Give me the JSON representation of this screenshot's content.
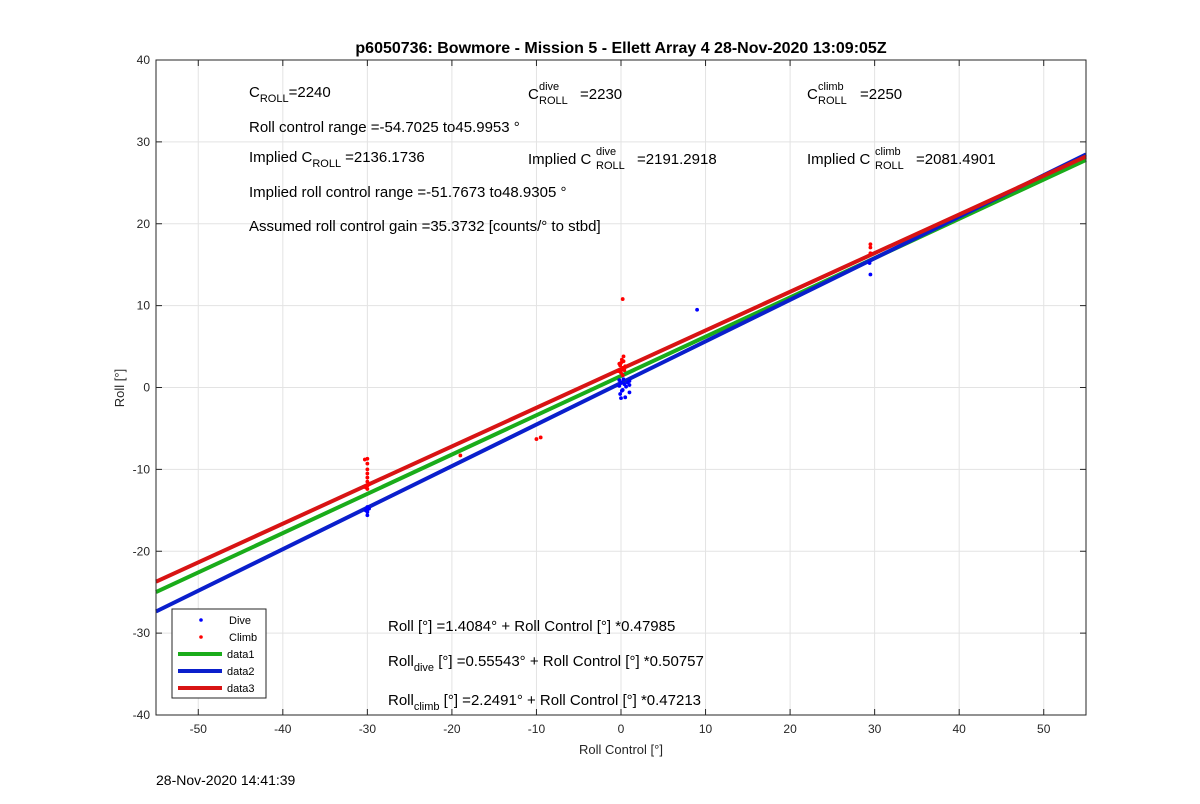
{
  "chart_data": {
    "type": "scatter",
    "title": "p6050736: Bowmore - Mission 5 - Ellett Array 4 28-Nov-2020 13:09:05Z",
    "xlabel": "Roll Control [°]",
    "ylabel": "Roll [°]",
    "xlim": [
      -55,
      55
    ],
    "ylim": [
      -40,
      40
    ],
    "xticks": [
      -50,
      -40,
      -30,
      -20,
      -10,
      0,
      10,
      20,
      30,
      40,
      50
    ],
    "yticks": [
      -40,
      -30,
      -20,
      -10,
      0,
      10,
      20,
      30,
      40
    ],
    "xtick_labels": [
      "-50",
      "-40",
      "-30",
      "-20",
      "-10",
      "0",
      "10",
      "20",
      "30",
      "40",
      "50"
    ],
    "ytick_labels": [
      "-40",
      "-30",
      "-20",
      "-10",
      "0",
      "10",
      "20",
      "30",
      "40"
    ],
    "grid": true,
    "legend_position": "bottom-left",
    "series": [
      {
        "name": "Dive",
        "kind": "scatter",
        "color": "#0000ff",
        "points": [
          [
            -30,
            -14.6
          ],
          [
            -30,
            -14.9
          ],
          [
            -30,
            -15.2
          ],
          [
            -30,
            -15.6
          ],
          [
            -30.2,
            -15.0
          ],
          [
            -29.8,
            -14.8
          ],
          [
            -0.2,
            0.2
          ],
          [
            0,
            0.6
          ],
          [
            0.2,
            -0.3
          ],
          [
            0.3,
            1.0
          ],
          [
            -0.1,
            -0.8
          ],
          [
            0.4,
            0.4
          ],
          [
            0,
            -1.3
          ],
          [
            0.5,
            -1.2
          ],
          [
            0.2,
            1.5
          ],
          [
            -0.2,
            0.9
          ],
          [
            0.6,
            0.1
          ],
          [
            1,
            0.3
          ],
          [
            1,
            0.8
          ],
          [
            1,
            -0.6
          ],
          [
            0.8,
            0.6
          ],
          [
            0.1,
            -0.4
          ],
          [
            9,
            9.5
          ],
          [
            29.5,
            13.8
          ],
          [
            29.4,
            15.2
          ]
        ]
      },
      {
        "name": "Climb",
        "kind": "scatter",
        "color": "#ff0000",
        "points": [
          [
            -30,
            -8.7
          ],
          [
            -30.3,
            -8.8
          ],
          [
            -30,
            -9.3
          ],
          [
            -30,
            -10.0
          ],
          [
            -30,
            -10.5
          ],
          [
            -30,
            -11.0
          ],
          [
            -30,
            -11.5
          ],
          [
            -30,
            -12.0
          ],
          [
            -30,
            -12.4
          ],
          [
            -29.8,
            -11.8
          ],
          [
            -30.2,
            -12.2
          ],
          [
            -19,
            -8.3
          ],
          [
            -10,
            -6.3
          ],
          [
            -9.5,
            -6.1
          ],
          [
            0.2,
            10.8
          ],
          [
            0.3,
            3.8
          ],
          [
            0.1,
            3.4
          ],
          [
            0,
            3.0
          ],
          [
            -0.1,
            2.7
          ],
          [
            0.2,
            2.4
          ],
          [
            0.4,
            2.1
          ],
          [
            0,
            1.8
          ],
          [
            -0.2,
            2.9
          ],
          [
            0.3,
            3.2
          ],
          [
            0.1,
            2.2
          ],
          [
            0.5,
            2.6
          ],
          [
            -0.3,
            2.0
          ],
          [
            0.2,
            1.5
          ],
          [
            29.5,
            17.5
          ],
          [
            29.5,
            17.1
          ],
          [
            29.5,
            16.4
          ]
        ]
      },
      {
        "name": "data1",
        "kind": "line",
        "color": "#1aac1a",
        "intercept": 1.4084,
        "slope": 0.47985
      },
      {
        "name": "data2",
        "kind": "line",
        "color": "#0a1fcc",
        "intercept": 0.55543,
        "slope": 0.50757
      },
      {
        "name": "data3",
        "kind": "line",
        "color": "#d81414",
        "intercept": 2.2491,
        "slope": 0.47213
      }
    ],
    "annotations": {
      "c_roll_prefix": "C",
      "c_roll_sub": "ROLL",
      "c_roll_value": "=2240",
      "c_dive_prefix": "C",
      "c_dive_sup": "dive",
      "c_dive_sub": "ROLL",
      "c_dive_value": "=2230",
      "c_climb_prefix": "C",
      "c_climb_sup": "climb",
      "c_climb_sub": "ROLL",
      "c_climb_value": "=2250",
      "roll_range": "Roll control range =-54.7025 to45.9953 °",
      "implied_prefix": "Implied C",
      "implied_c_sub": "ROLL",
      "implied_c_value": "=2136.1736",
      "implied_dive_sup": "dive",
      "implied_dive_sub": "ROLL",
      "implied_dive_value": "=2191.2918",
      "implied_climb_sup": "climb",
      "implied_climb_sub": "ROLL",
      "implied_climb_value": "=2081.4901",
      "implied_range": "Implied roll control range =-51.7673 to48.9305 °",
      "gain": "Assumed roll control gain =35.3732 [counts/° to stbd]",
      "fit_all": "Roll [°] =1.4084° + Roll Control [°] *0.47985",
      "fit_dive_prefix": "Roll",
      "fit_dive_sub": "dive",
      "fit_dive_rest": " [°] =0.55543° + Roll Control [°] *0.50757",
      "fit_climb_prefix": "Roll",
      "fit_climb_sub": "climb",
      "fit_climb_rest": " [°] =2.2491° + Roll Control [°] *0.47213"
    }
  },
  "footer_timestamp": "28-Nov-2020 14:41:39"
}
